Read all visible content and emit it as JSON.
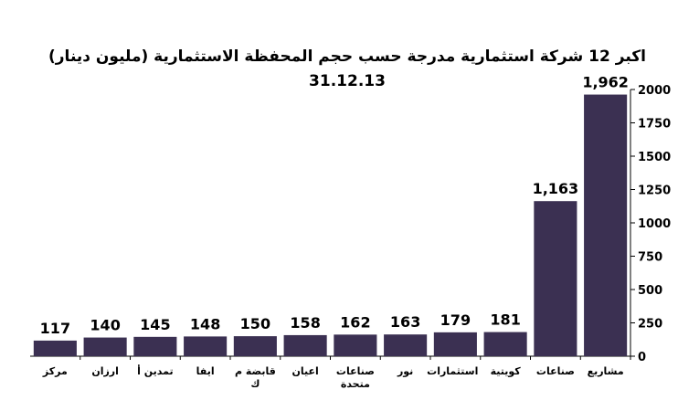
{
  "chart_data": {
    "type": "bar",
    "title": "اكبر 12 شركة استثمارية مدرجة حسب حجم المحفظة الاستثمارية (مليون دينار)",
    "subtitle": "31.12.13",
    "categories": [
      "مشاريع",
      "صناعات",
      "كويتية",
      "استثمارات",
      "نور",
      "صناعات متحدة",
      "اعيان",
      "قابضة م ك",
      "ايفا",
      "تمدين أ",
      "ارزان",
      "مركز"
    ],
    "values": [
      1962,
      1163,
      181,
      179,
      163,
      162,
      158,
      150,
      148,
      145,
      140,
      117
    ],
    "value_labels": [
      "1,962",
      "1,163",
      "181",
      "179",
      "163",
      "162",
      "158",
      "150",
      "148",
      "145",
      "140",
      "117"
    ],
    "color": "#3b3052",
    "ylim": [
      0,
      2000
    ],
    "yticks": [
      0,
      250,
      500,
      750,
      1000,
      1250,
      1500,
      1750,
      2000
    ]
  }
}
